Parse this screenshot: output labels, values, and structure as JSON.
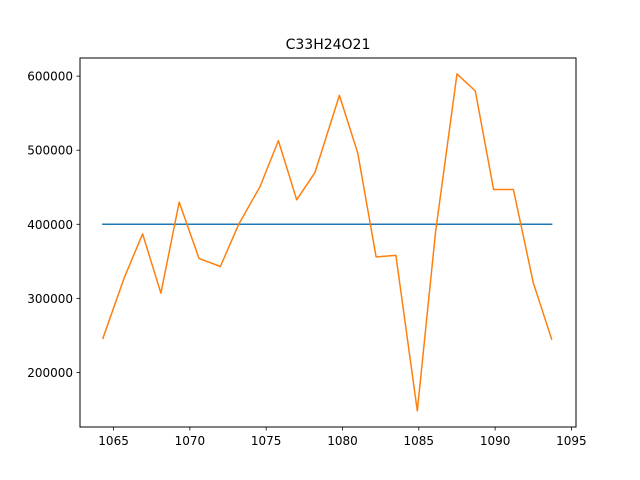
{
  "chart_data": {
    "type": "line",
    "title": "C33H24O21",
    "xlabel": "",
    "ylabel": "",
    "xlim": [
      1062.8,
      1095.3
    ],
    "ylim": [
      126300,
      624500
    ],
    "x_ticks": [
      1065,
      1070,
      1075,
      1080,
      1085,
      1090,
      1095
    ],
    "x_tick_labels": [
      "1065",
      "1070",
      "1075",
      "1080",
      "1085",
      "1090",
      "1095"
    ],
    "y_ticks": [
      200000,
      300000,
      400000,
      500000,
      600000
    ],
    "y_tick_labels": [
      "200000",
      "300000",
      "400000",
      "500000",
      "600000"
    ],
    "grid": false,
    "legend": "none",
    "series": [
      {
        "color": "#1f77b4",
        "x": [
          1064.3,
          1093.7
        ],
        "y": [
          400000,
          400000
        ]
      },
      {
        "color": "#ff7f0e",
        "x": [
          1064.3,
          1065.7,
          1066.9,
          1068.1,
          1069.3,
          1070.6,
          1072.0,
          1073.2,
          1074.6,
          1075.8,
          1077.0,
          1078.2,
          1079.8,
          1081.0,
          1082.2,
          1083.5,
          1084.9,
          1086.1,
          1087.5,
          1088.7,
          1089.9,
          1091.2,
          1092.5,
          1093.7
        ],
        "y": [
          246000,
          328000,
          387000,
          307000,
          430000,
          354000,
          343000,
          400000,
          451000,
          513000,
          433000,
          470000,
          574000,
          496000,
          356000,
          358000,
          148000,
          390000,
          603000,
          580000,
          447000,
          447000,
          321000,
          245000
        ]
      }
    ]
  }
}
